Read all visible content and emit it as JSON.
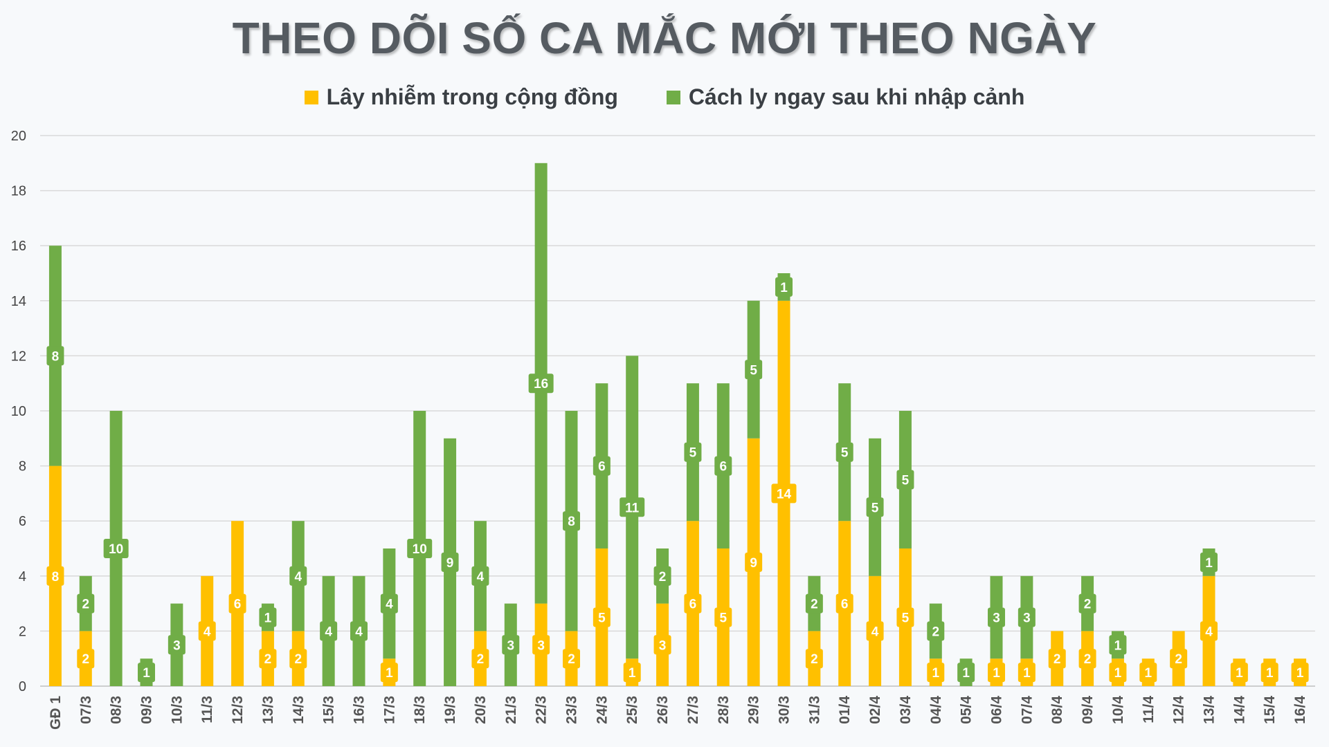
{
  "chart_data": {
    "type": "bar",
    "stacked": true,
    "title": "THEO DÕI SỐ CA MẮC MỚI THEO NGÀY",
    "xlabel": "",
    "ylabel": "",
    "ylim": [
      0,
      20
    ],
    "yticks": [
      0,
      2,
      4,
      6,
      8,
      10,
      12,
      14,
      16,
      18,
      20
    ],
    "grid": true,
    "legend_position": "top-center",
    "categories": [
      "GĐ 1",
      "07/3",
      "08/3",
      "09/3",
      "10/3",
      "11/3",
      "12/3",
      "13/3",
      "14/3",
      "15/3",
      "16/3",
      "17/3",
      "18/3",
      "19/3",
      "20/3",
      "21/3",
      "22/3",
      "23/3",
      "24/3",
      "25/3",
      "26/3",
      "27/3",
      "28/3",
      "29/3",
      "30/3",
      "31/3",
      "01/4",
      "02/4",
      "03/4",
      "04/4",
      "05/4",
      "06/4",
      "07/4",
      "08/4",
      "09/4",
      "10/4",
      "11/4",
      "12/4",
      "13/4",
      "14/4",
      "15/4",
      "16/4"
    ],
    "series": [
      {
        "name": "Lây nhiễm trong cộng đồng",
        "color": "#ffc000",
        "values": [
          8,
          2,
          0,
          0,
          0,
          4,
          6,
          2,
          2,
          0,
          0,
          1,
          0,
          0,
          2,
          0,
          3,
          2,
          5,
          1,
          3,
          6,
          5,
          9,
          14,
          2,
          6,
          4,
          5,
          1,
          0,
          1,
          1,
          2,
          2,
          1,
          1,
          2,
          4,
          1,
          1,
          1
        ]
      },
      {
        "name": "Cách ly ngay sau khi nhập cảnh",
        "color": "#70ad47",
        "values": [
          8,
          2,
          10,
          1,
          3,
          0,
          0,
          1,
          4,
          4,
          4,
          4,
          10,
          9,
          4,
          3,
          16,
          8,
          6,
          11,
          2,
          5,
          6,
          5,
          1,
          2,
          5,
          5,
          5,
          2,
          1,
          3,
          3,
          0,
          2,
          1,
          0,
          0,
          1,
          0,
          0,
          0
        ]
      }
    ]
  }
}
